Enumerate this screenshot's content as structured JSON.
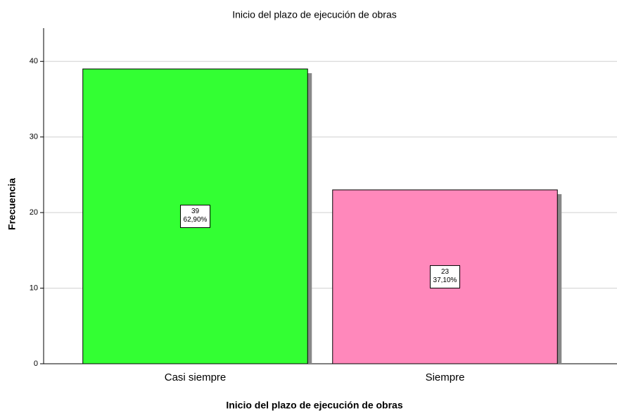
{
  "chart_data": {
    "type": "bar",
    "title": "Inicio del plazo de ejecución de obras",
    "x_label": "Inicio del plazo de ejecución de obras",
    "y_label": "Frecuencia",
    "categories": [
      "Casi siempre",
      "Siempre"
    ],
    "values": [
      39,
      23
    ],
    "percents": [
      62.9,
      37.1
    ],
    "percent_labels": [
      "62,90%",
      "37,10%"
    ],
    "colors": [
      "#33ff33",
      "#ff88bb"
    ],
    "ylim": [
      0,
      44.4
    ],
    "yticks": [
      0,
      10,
      20,
      30,
      40
    ],
    "grid": true
  }
}
